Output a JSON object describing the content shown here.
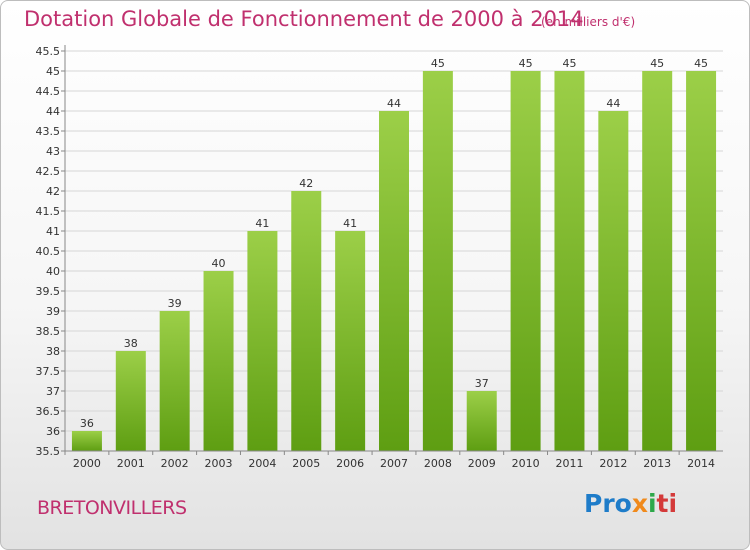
{
  "chart_data": {
    "type": "bar",
    "title": "Dotation Globale de Fonctionnement de 2000 à 2014",
    "subtitle": "(en milliers d'€)",
    "categories": [
      "2000",
      "2001",
      "2002",
      "2003",
      "2004",
      "2005",
      "2006",
      "2007",
      "2008",
      "2009",
      "2010",
      "2011",
      "2012",
      "2013",
      "2014"
    ],
    "values": [
      36,
      38,
      39,
      40,
      41,
      42,
      41,
      44,
      45,
      37,
      45,
      45,
      44,
      45,
      45
    ],
    "ylim": [
      35.5,
      45.5
    ],
    "yticks": [
      "35.5",
      "36",
      "36.5",
      "37",
      "37.5",
      "38",
      "38.5",
      "39",
      "39.5",
      "40",
      "40.5",
      "41",
      "41.5",
      "42",
      "42.5",
      "43",
      "43.5",
      "44",
      "44.5",
      "45",
      "45.5"
    ],
    "grid": true,
    "bar_color": "#7bbf2e"
  },
  "place_name": "BRETONVILLERS",
  "logo": {
    "p1": "Pro",
    "p2": "x",
    "p3": "i",
    "p4": "ti"
  }
}
